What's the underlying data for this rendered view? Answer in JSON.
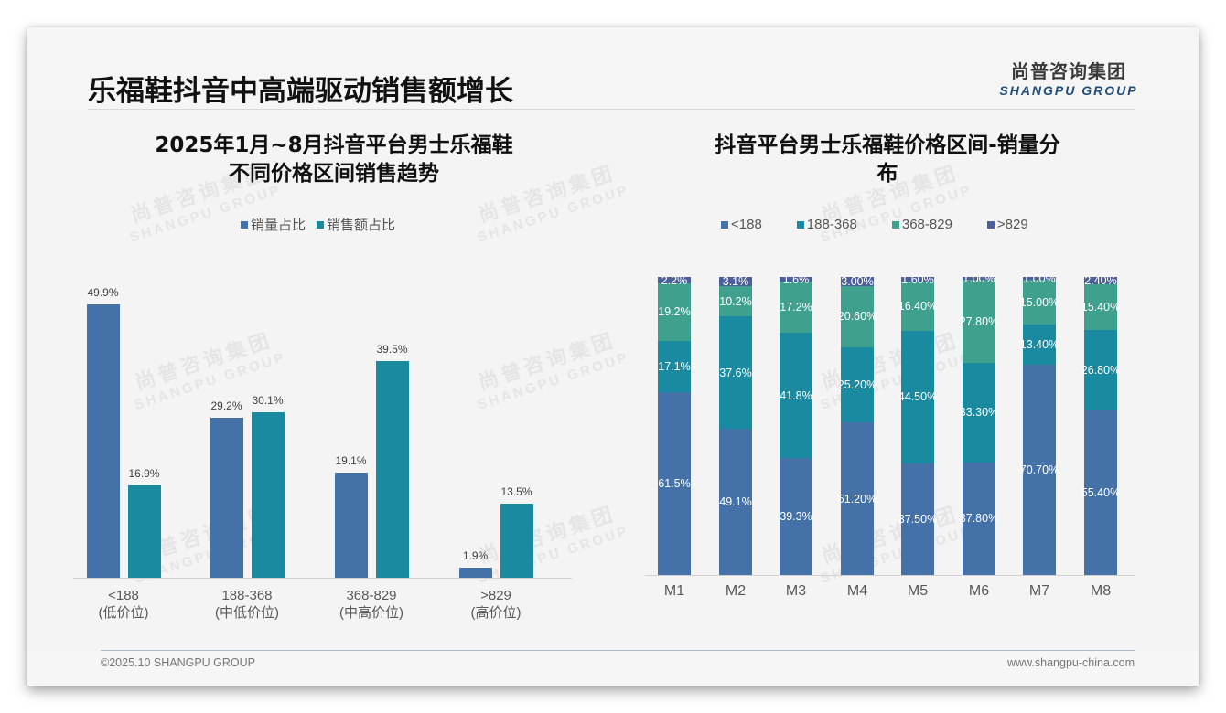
{
  "header": {
    "title": "乐福鞋抖音中高端驱动销售额增长",
    "logo_cn": "尚普咨询集团",
    "logo_en": "SHANGPU GROUP"
  },
  "watermark": {
    "cn": "尚普咨询集团",
    "en": "SHANGPU GROUP"
  },
  "colors": {
    "lt188": "#4472a8",
    "r188_368": "#1a8aa0",
    "r368_829": "#3fa08e",
    "gt829": "#4d5f9a",
    "volume": "#4472a8",
    "revenue": "#1a8aa0"
  },
  "left_chart": {
    "title_line1": "2025年1月~8月抖音平台男士乐福鞋",
    "title_line2": "不同价格区间销售趋势",
    "legend": [
      "销量占比",
      "销售额占比"
    ],
    "categories": [
      {
        "range": "<188",
        "tier": "(低价位)"
      },
      {
        "range": "188-368",
        "tier": "(中低价位)"
      },
      {
        "range": "368-829",
        "tier": "(中高价位)"
      },
      {
        "range": ">829",
        "tier": "(高价位)"
      }
    ],
    "volume_labels": [
      "49.9%",
      "29.2%",
      "19.1%",
      "1.9%"
    ],
    "revenue_labels": [
      "16.9%",
      "30.1%",
      "39.5%",
      "13.5%"
    ]
  },
  "right_chart": {
    "title_line1": "抖音平台男士乐福鞋价格区间-销量分",
    "title_line2": "布",
    "legend": [
      "<188",
      "188-368",
      "368-829",
      ">829"
    ],
    "months": [
      "M1",
      "M2",
      "M3",
      "M4",
      "M5",
      "M6",
      "M7",
      "M8"
    ],
    "labels": {
      "lt188": [
        "61.5%",
        "49.1%",
        "39.3%",
        "51.20%",
        "37.50%",
        "37.80%",
        "70.70%",
        "55.40%"
      ],
      "r188_368": [
        "17.1%",
        "37.6%",
        "41.8%",
        "25.20%",
        "44.50%",
        "33.30%",
        "13.40%",
        "26.80%"
      ],
      "r368_829": [
        "19.2%",
        "10.2%",
        "17.2%",
        "20.60%",
        "16.40%",
        "27.80%",
        "15.00%",
        "15.40%"
      ],
      "gt829": [
        "2.2%",
        "3.1%",
        "1.6%",
        "3.00%",
        "1.60%",
        "1.00%",
        "1.00%",
        "2.40%"
      ]
    }
  },
  "footer": {
    "left": "©2025.10 SHANGPU GROUP",
    "right": "www.shangpu-china.com"
  },
  "chart_data": [
    {
      "type": "bar",
      "title": "2025年1月~8月抖音平台男士乐福鞋不同价格区间销售趋势",
      "categories": [
        "<188 (低价位)",
        "188-368 (中低价位)",
        "368-829 (中高价位)",
        ">829 (高价位)"
      ],
      "series": [
        {
          "name": "销量占比",
          "values": [
            49.9,
            29.2,
            19.1,
            1.9
          ],
          "color": "#4472a8"
        },
        {
          "name": "销售额占比",
          "values": [
            16.9,
            30.1,
            39.5,
            13.5
          ],
          "color": "#1a8aa0"
        }
      ],
      "xlabel": "",
      "ylabel": "",
      "unit": "%",
      "ylim": [
        0,
        55
      ],
      "grid": false,
      "legend_position": "top"
    },
    {
      "type": "bar",
      "stacked": true,
      "percent": true,
      "title": "抖音平台男士乐福鞋价格区间-销量分布",
      "categories": [
        "M1",
        "M2",
        "M3",
        "M4",
        "M5",
        "M6",
        "M7",
        "M8"
      ],
      "series": [
        {
          "name": "<188",
          "values": [
            61.5,
            49.1,
            39.3,
            51.2,
            37.5,
            37.8,
            70.7,
            55.4
          ],
          "color": "#4472a8"
        },
        {
          "name": "188-368",
          "values": [
            17.1,
            37.6,
            41.8,
            25.2,
            44.5,
            33.3,
            13.4,
            26.8
          ],
          "color": "#1a8aa0"
        },
        {
          "name": "368-829",
          "values": [
            19.2,
            10.2,
            17.2,
            20.6,
            16.4,
            27.8,
            15.0,
            15.4
          ],
          "color": "#3fa08e"
        },
        {
          "name": ">829",
          "values": [
            2.2,
            3.1,
            1.6,
            3.0,
            1.6,
            1.0,
            1.0,
            2.4
          ],
          "color": "#4d5f9a"
        }
      ],
      "xlabel": "",
      "ylabel": "",
      "unit": "%",
      "ylim": [
        0,
        100
      ],
      "grid": false,
      "legend_position": "top"
    }
  ]
}
